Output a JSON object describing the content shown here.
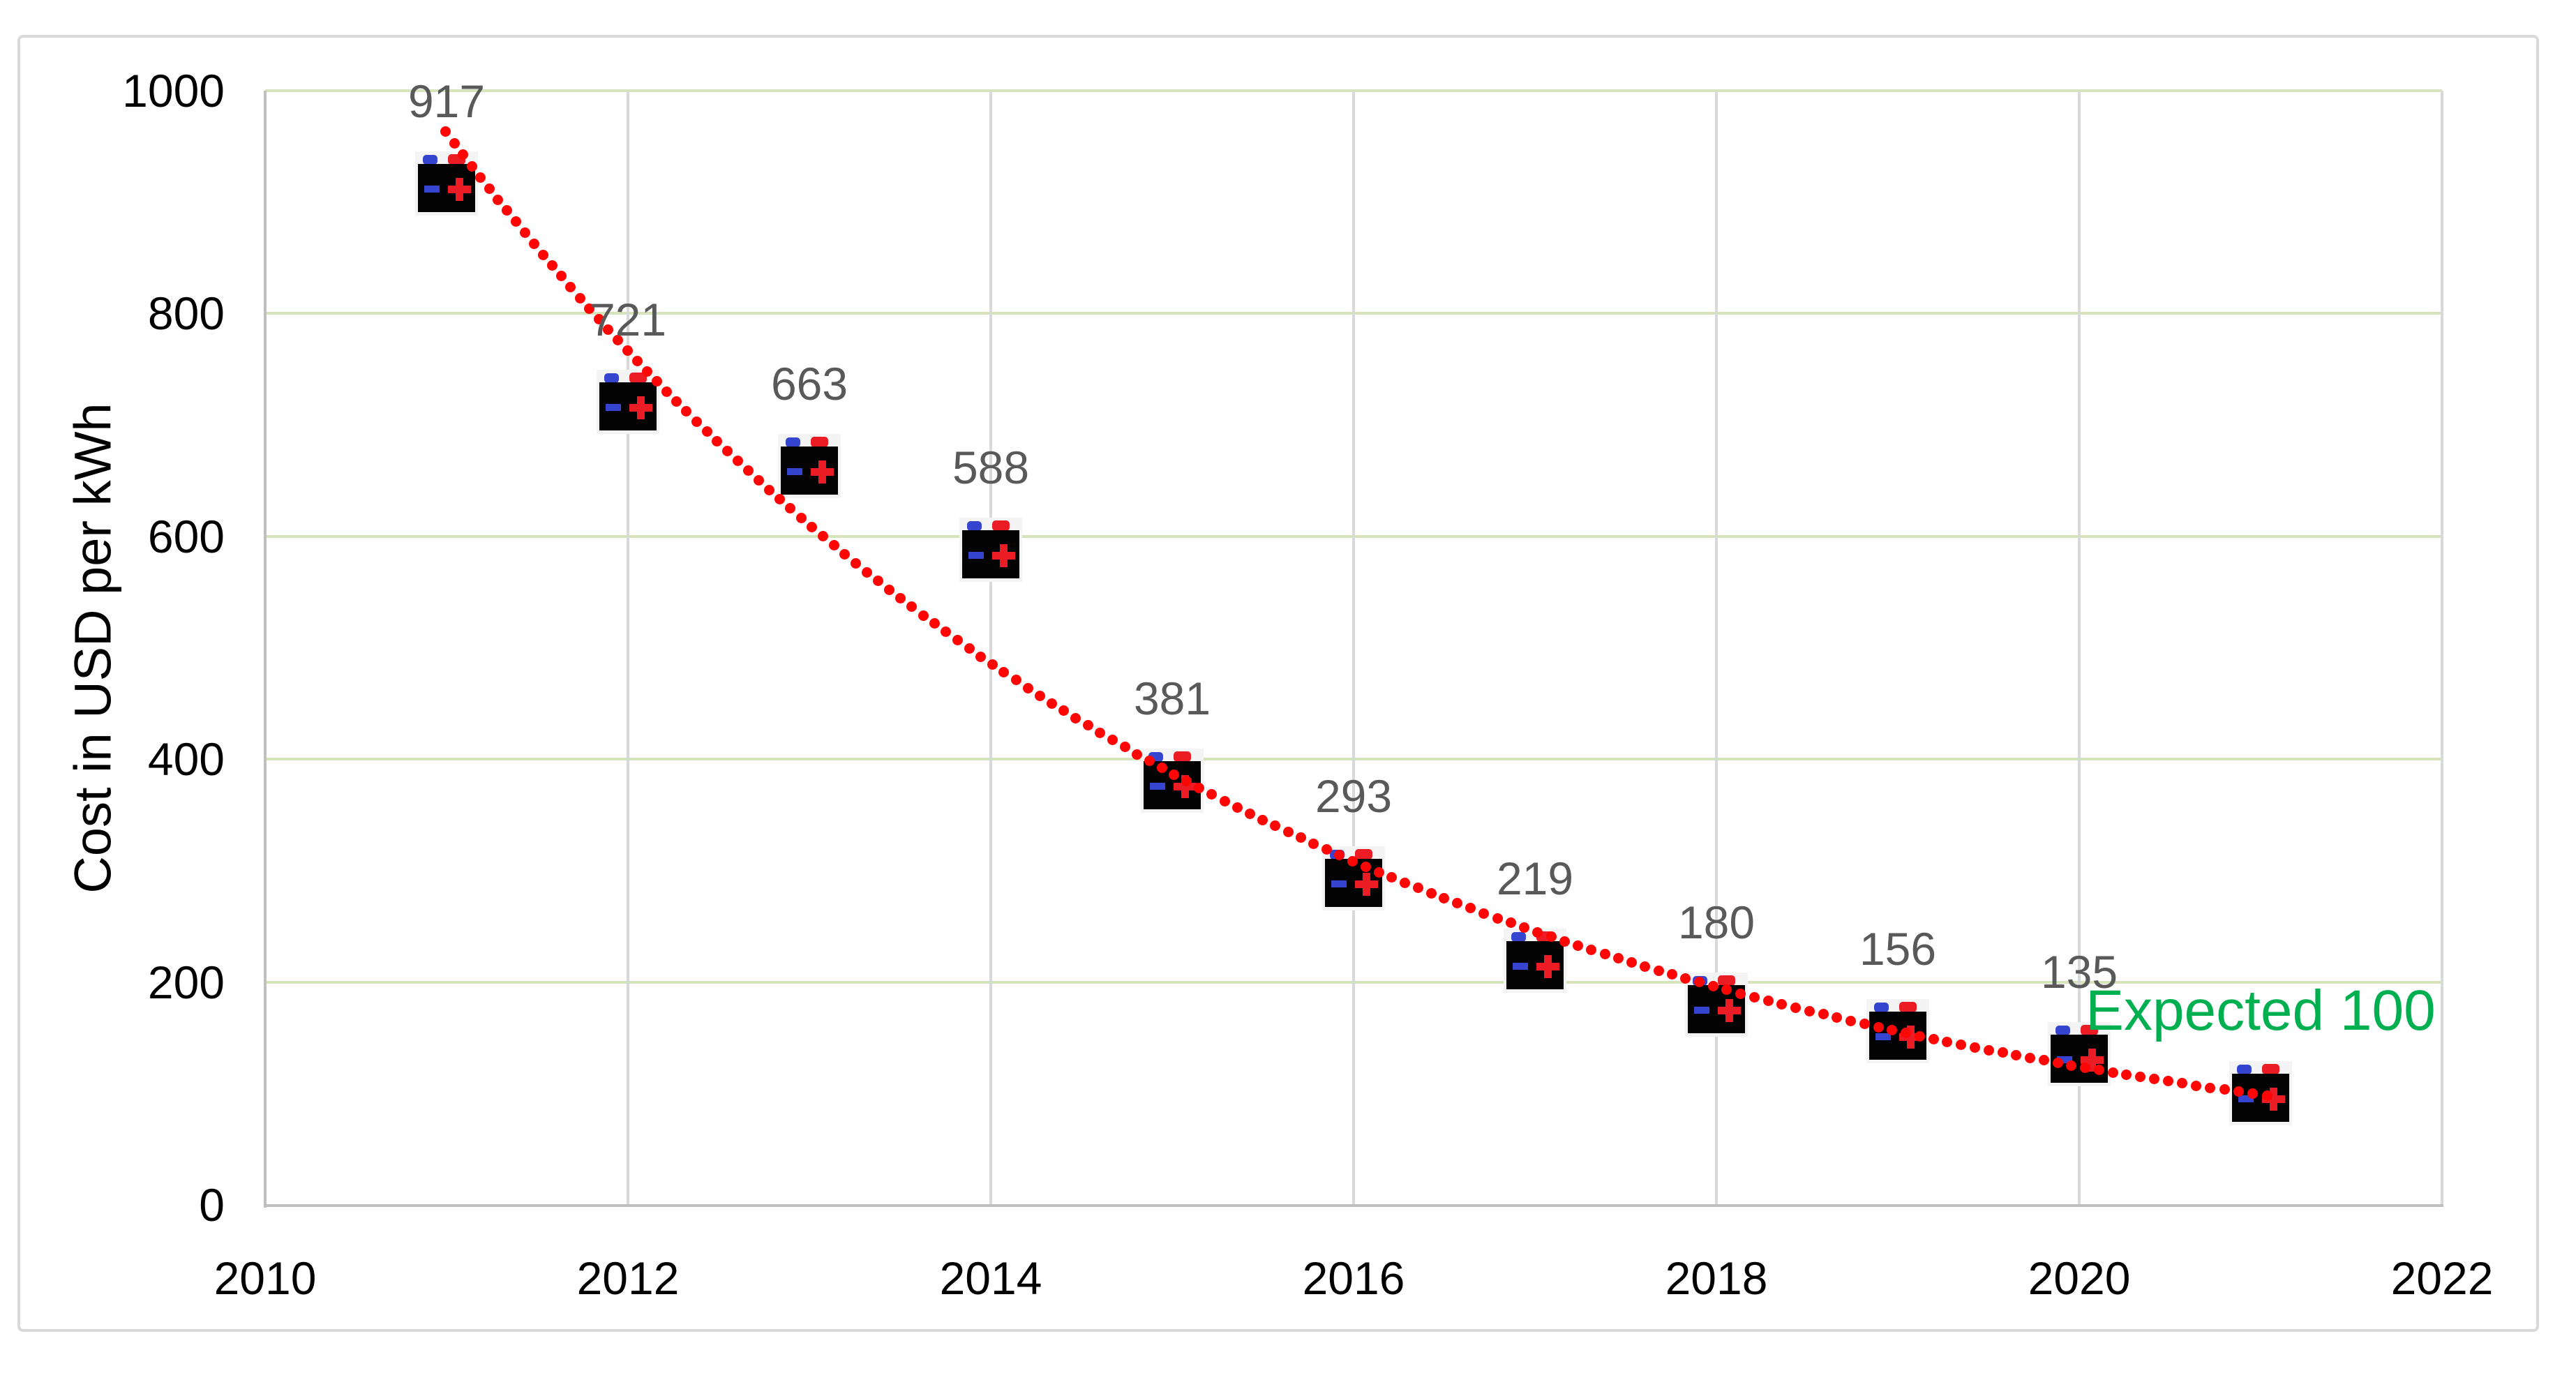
{
  "chart_data": {
    "type": "scatter",
    "title": "",
    "x": [
      2011,
      2012,
      2013,
      2014,
      2015,
      2016,
      2017,
      2018,
      2019,
      2020,
      2021
    ],
    "series": [
      {
        "name": "Cost in USD per kWh",
        "values": [
          917,
          721,
          663,
          588,
          381,
          293,
          219,
          180,
          156,
          135,
          100
        ]
      }
    ],
    "point_labels": [
      "917",
      "721",
      "663",
      "588",
      "381",
      "293",
      "219",
      "180",
      "156",
      "135",
      "Expected 100"
    ],
    "expected_label_index": 10,
    "xlabel": "",
    "ylabel": "Cost in USD per kWh",
    "xlim": [
      2010,
      2022
    ],
    "ylim": [
      0,
      1000
    ],
    "x_ticks": [
      "2010",
      "2012",
      "2014",
      "2016",
      "2018",
      "2020",
      "2022"
    ],
    "y_ticks": [
      "0",
      "200",
      "400",
      "600",
      "800",
      "1000"
    ],
    "grid": true,
    "legend": false,
    "marker": "battery-icon",
    "trendline": {
      "type": "exponential",
      "style": "dotted",
      "color": "#fe0606"
    }
  },
  "colors": {
    "h_gridline": "#d6e4bc",
    "v_gridline": "#d9d9d9",
    "axis_line": "#bfbfbf",
    "data_label": "#595959",
    "expected_label": "#00b050",
    "trend_dot": "#fe0606",
    "battery_blue": "#3545cf",
    "battery_red": "#ec1c24",
    "battery_body": "#030303",
    "chart_border": "#d9d9d9"
  }
}
